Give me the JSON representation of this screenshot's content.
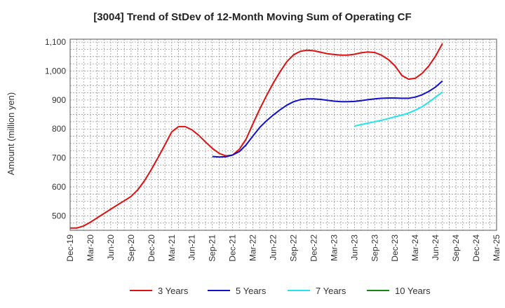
{
  "chart_data": {
    "type": "line",
    "title": "[3004]  Trend of StDev of 12-Month Moving Sum of Operating CF",
    "xlabel": "",
    "ylabel": "Amount (million yen)",
    "ylim": [
      450,
      1110
    ],
    "yticks": [
      500,
      600,
      700,
      800,
      900,
      1000,
      1100
    ],
    "ytick_labels": [
      "500",
      "600",
      "700",
      "800",
      "900",
      "1,000",
      "1,100"
    ],
    "xlim": [
      "2019-12",
      "2025-03"
    ],
    "xtick_labels": [
      "Dec-19",
      "Mar-20",
      "Jun-20",
      "Sep-20",
      "Dec-20",
      "Mar-21",
      "Jun-21",
      "Sep-21",
      "Dec-21",
      "Mar-22",
      "Jun-22",
      "Sep-22",
      "Dec-22",
      "Mar-23",
      "Jun-23",
      "Sep-23",
      "Dec-23",
      "Mar-24",
      "Jun-24",
      "Sep-24",
      "Dec-24",
      "Mar-25"
    ],
    "grid": true,
    "legend_position": "bottom",
    "series": [
      {
        "name": "3 Years",
        "color": "#dd1111",
        "points": [
          [
            "2019-12",
            458
          ],
          [
            "2020-01",
            458
          ],
          [
            "2020-02",
            465
          ],
          [
            "2020-03",
            478
          ],
          [
            "2020-04",
            493
          ],
          [
            "2020-05",
            508
          ],
          [
            "2020-06",
            523
          ],
          [
            "2020-07",
            538
          ],
          [
            "2020-08",
            552
          ],
          [
            "2020-09",
            567
          ],
          [
            "2020-10",
            590
          ],
          [
            "2020-11",
            622
          ],
          [
            "2020-12",
            660
          ],
          [
            "2021-01",
            702
          ],
          [
            "2021-02",
            745
          ],
          [
            "2021-03",
            790
          ],
          [
            "2021-04",
            808
          ],
          [
            "2021-05",
            808
          ],
          [
            "2021-06",
            797
          ],
          [
            "2021-07",
            778
          ],
          [
            "2021-08",
            755
          ],
          [
            "2021-09",
            733
          ],
          [
            "2021-10",
            716
          ],
          [
            "2021-11",
            707
          ],
          [
            "2021-12",
            710
          ],
          [
            "2022-01",
            730
          ],
          [
            "2022-02",
            765
          ],
          [
            "2022-03",
            818
          ],
          [
            "2022-04",
            868
          ],
          [
            "2022-05",
            915
          ],
          [
            "2022-06",
            958
          ],
          [
            "2022-07",
            997
          ],
          [
            "2022-08",
            1032
          ],
          [
            "2022-09",
            1056
          ],
          [
            "2022-10",
            1068
          ],
          [
            "2022-11",
            1072
          ],
          [
            "2022-12",
            1070
          ],
          [
            "2023-01",
            1065
          ],
          [
            "2023-02",
            1060
          ],
          [
            "2023-03",
            1057
          ],
          [
            "2023-04",
            1055
          ],
          [
            "2023-05",
            1055
          ],
          [
            "2023-06",
            1058
          ],
          [
            "2023-07",
            1063
          ],
          [
            "2023-08",
            1066
          ],
          [
            "2023-09",
            1064
          ],
          [
            "2023-10",
            1055
          ],
          [
            "2023-11",
            1040
          ],
          [
            "2023-12",
            1018
          ],
          [
            "2024-01",
            985
          ],
          [
            "2024-02",
            972
          ],
          [
            "2024-03",
            975
          ],
          [
            "2024-04",
            992
          ],
          [
            "2024-05",
            1018
          ],
          [
            "2024-06",
            1052
          ],
          [
            "2024-07",
            1095
          ]
        ]
      },
      {
        "name": "5 Years",
        "color": "#1111cc",
        "points": [
          [
            "2021-09",
            705
          ],
          [
            "2021-10",
            703
          ],
          [
            "2021-11",
            704
          ],
          [
            "2021-12",
            710
          ],
          [
            "2022-01",
            722
          ],
          [
            "2022-02",
            745
          ],
          [
            "2022-03",
            776
          ],
          [
            "2022-04",
            805
          ],
          [
            "2022-05",
            828
          ],
          [
            "2022-06",
            848
          ],
          [
            "2022-07",
            866
          ],
          [
            "2022-08",
            882
          ],
          [
            "2022-09",
            894
          ],
          [
            "2022-10",
            901
          ],
          [
            "2022-11",
            904
          ],
          [
            "2022-12",
            904
          ],
          [
            "2023-01",
            902
          ],
          [
            "2023-02",
            899
          ],
          [
            "2023-03",
            896
          ],
          [
            "2023-04",
            894
          ],
          [
            "2023-05",
            894
          ],
          [
            "2023-06",
            895
          ],
          [
            "2023-07",
            898
          ],
          [
            "2023-08",
            901
          ],
          [
            "2023-09",
            904
          ],
          [
            "2023-10",
            906
          ],
          [
            "2023-11",
            907
          ],
          [
            "2023-12",
            907
          ],
          [
            "2024-01",
            906
          ],
          [
            "2024-02",
            906
          ],
          [
            "2024-03",
            910
          ],
          [
            "2024-04",
            918
          ],
          [
            "2024-05",
            930
          ],
          [
            "2024-06",
            945
          ],
          [
            "2024-07",
            966
          ]
        ]
      },
      {
        "name": "7 Years",
        "color": "#22e5ee",
        "points": [
          [
            "2023-06",
            810
          ],
          [
            "2023-07",
            815
          ],
          [
            "2023-08",
            820
          ],
          [
            "2023-09",
            825
          ],
          [
            "2023-10",
            830
          ],
          [
            "2023-11",
            836
          ],
          [
            "2023-12",
            842
          ],
          [
            "2024-01",
            848
          ],
          [
            "2024-02",
            855
          ],
          [
            "2024-03",
            865
          ],
          [
            "2024-04",
            877
          ],
          [
            "2024-05",
            893
          ],
          [
            "2024-06",
            910
          ],
          [
            "2024-07",
            928
          ]
        ]
      },
      {
        "name": "10 Years",
        "color": "#118811",
        "points": []
      }
    ]
  }
}
